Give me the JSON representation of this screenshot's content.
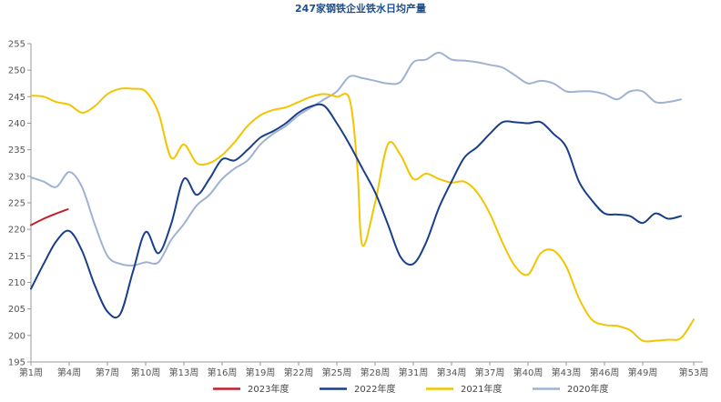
{
  "chart_data": {
    "type": "line",
    "title": "247家钢铁企业铁水日均产量",
    "xlabel": "",
    "ylabel": "",
    "ylim": [
      195,
      255
    ],
    "y_ticks": [
      195,
      200,
      205,
      210,
      215,
      220,
      225,
      230,
      235,
      240,
      245,
      250,
      255
    ],
    "xlim": [
      1,
      53
    ],
    "x_tick_labels": [
      "第1周",
      "第4周",
      "第7周",
      "第10周",
      "第13周",
      "第16周",
      "第19周",
      "第22周",
      "第25周",
      "第28周",
      "第31周",
      "第34周",
      "第37周",
      "第40周",
      "第43周",
      "第46周",
      "第49周",
      "第53周"
    ],
    "x_tick_positions": [
      1,
      4,
      7,
      10,
      13,
      16,
      19,
      22,
      25,
      28,
      31,
      34,
      37,
      40,
      43,
      46,
      49,
      53
    ],
    "grid": "horizontal-none",
    "legend_position": "bottom",
    "series": [
      {
        "name": "2023年度",
        "color": "#c0202a",
        "x": [
          1,
          2,
          3,
          3.9
        ],
        "values": [
          220.8,
          222.0,
          223.0,
          223.8
        ]
      },
      {
        "name": "2022年度",
        "color": "#1a3f8a",
        "x": [
          1,
          2,
          3,
          4,
          5,
          6,
          7,
          8,
          9,
          10,
          11,
          12,
          13,
          14,
          15,
          16,
          17,
          18,
          19,
          20,
          21,
          22,
          23,
          24,
          25,
          26,
          27,
          28,
          29,
          30,
          31,
          32,
          33,
          34,
          35,
          36,
          37,
          38,
          39,
          40,
          41,
          42,
          43,
          44,
          45,
          46,
          47,
          48,
          49,
          50,
          51,
          52
        ],
        "values": [
          208.8,
          213.5,
          217.8,
          219.7,
          216.0,
          209.5,
          204.5,
          204.0,
          212.0,
          219.5,
          215.5,
          221.0,
          229.5,
          226.5,
          229.5,
          233.2,
          233.0,
          235.0,
          237.3,
          238.5,
          240.0,
          242.0,
          243.2,
          243.3,
          240.0,
          236.0,
          231.5,
          227.0,
          221.0,
          214.8,
          213.5,
          217.5,
          224.0,
          229.0,
          233.5,
          235.5,
          238.0,
          240.2,
          240.2,
          240.0,
          240.2,
          238.0,
          235.5,
          229.0,
          225.5,
          223.0,
          222.8,
          222.5,
          221.2,
          223.0,
          222.0,
          222.5
        ]
      },
      {
        "name": "2021年度",
        "color": "#f2c500",
        "x": [
          1,
          2,
          3,
          4,
          5,
          6,
          7,
          8,
          9,
          10,
          11,
          12,
          13,
          14,
          15,
          16,
          17,
          18,
          19,
          20,
          21,
          22,
          23,
          24,
          25,
          26,
          26.6,
          27,
          28,
          29,
          30,
          31,
          32,
          33,
          34,
          35,
          36,
          37,
          38,
          39,
          40,
          41,
          42,
          43,
          44,
          45,
          46,
          47,
          48,
          49,
          50,
          51,
          52,
          53
        ],
        "values": [
          245.2,
          245.0,
          244.0,
          243.5,
          242.0,
          243.2,
          245.5,
          246.5,
          246.5,
          246.0,
          242.0,
          233.5,
          236.0,
          232.5,
          232.5,
          234.0,
          236.5,
          239.5,
          241.5,
          242.5,
          243.0,
          244.0,
          245.0,
          245.5,
          245.0,
          244.5,
          232.0,
          217.0,
          225.0,
          236.0,
          234.0,
          229.5,
          230.5,
          229.5,
          228.8,
          229.0,
          227.0,
          223.0,
          217.5,
          213.0,
          211.5,
          215.5,
          216.0,
          213.0,
          207.0,
          203.0,
          202.0,
          201.8,
          201.0,
          199.0,
          199.0,
          199.2,
          199.5,
          203.0
        ]
      },
      {
        "name": "2020年度",
        "color": "#9fb3d1",
        "x": [
          1,
          2,
          3,
          4,
          5,
          6,
          7,
          8,
          9,
          10,
          11,
          12,
          13,
          14,
          15,
          16,
          17,
          18,
          19,
          20,
          21,
          22,
          23,
          24,
          25,
          26,
          27,
          28,
          29,
          30,
          31,
          32,
          33,
          34,
          35,
          36,
          37,
          38,
          39,
          40,
          41,
          42,
          43,
          44,
          45,
          46,
          47,
          48,
          49,
          50,
          51,
          52
        ],
        "values": [
          229.8,
          229.0,
          228.0,
          230.8,
          228.0,
          221.0,
          215.0,
          213.5,
          213.2,
          213.8,
          213.8,
          218.0,
          221.0,
          224.5,
          226.5,
          229.5,
          231.5,
          233.0,
          236.0,
          238.0,
          239.5,
          241.5,
          243.0,
          244.5,
          246.0,
          248.8,
          248.5,
          248.0,
          247.5,
          247.8,
          251.5,
          252.0,
          253.3,
          252.0,
          251.8,
          251.5,
          251.0,
          250.5,
          249.0,
          247.5,
          248.0,
          247.5,
          246.0,
          246.0,
          246.0,
          245.5,
          244.5,
          246.0,
          246.0,
          244.0,
          244.0,
          244.5
        ]
      }
    ]
  }
}
